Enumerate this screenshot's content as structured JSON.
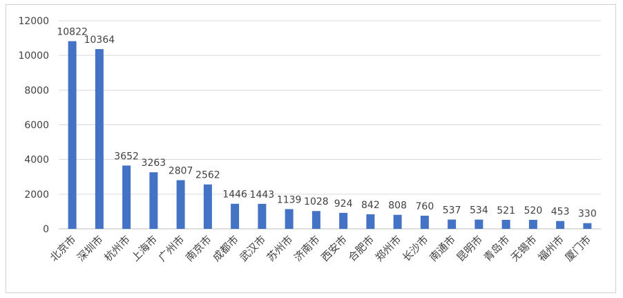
{
  "chart_data": {
    "type": "bar",
    "categories": [
      "北京市",
      "深圳市",
      "杭州市",
      "上海市",
      "广州市",
      "南京市",
      "成都市",
      "武汉市",
      "苏州市",
      "济南市",
      "西安市",
      "合肥市",
      "郑州市",
      "长沙市",
      "南通市",
      "昆明市",
      "青岛市",
      "无锡市",
      "福州市",
      "厦门市"
    ],
    "values": [
      10822,
      10364,
      3652,
      3263,
      2807,
      2562,
      1446,
      1443,
      1139,
      1028,
      924,
      842,
      808,
      760,
      537,
      534,
      521,
      520,
      453,
      330
    ],
    "ylim": [
      0,
      12000
    ],
    "yticks": [
      0,
      2000,
      4000,
      6000,
      8000,
      10000,
      12000
    ],
    "grid": true,
    "bar_color": "#4472C4",
    "title": "",
    "xlabel": "",
    "ylabel": ""
  }
}
